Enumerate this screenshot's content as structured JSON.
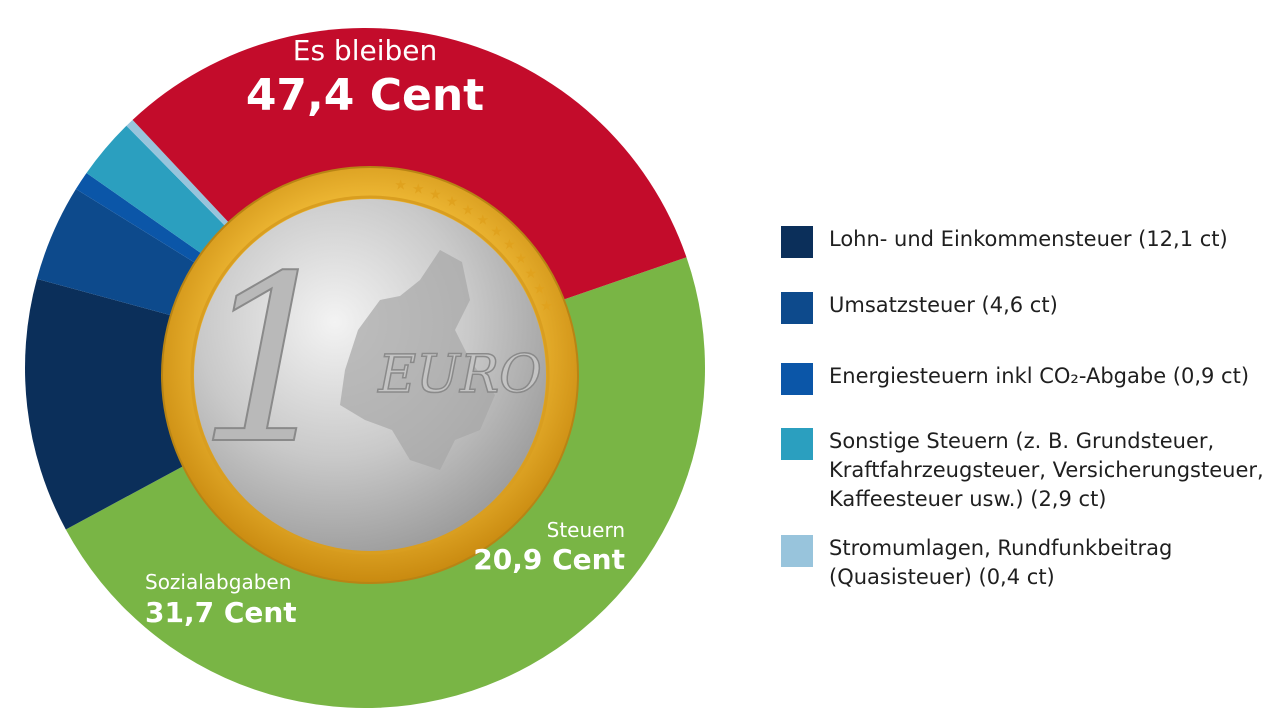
{
  "chart_data": {
    "type": "pie",
    "slices": [
      {
        "label": "Es bleiben",
        "value_label": "47,4 Cent",
        "value": 47.4,
        "color": "#79b545"
      },
      {
        "label": "Steuern",
        "value_label": "20,9 Cent",
        "value": 20.9,
        "color": "#0b3a6b",
        "parts": [
          {
            "name": "Lohn- und Einkommensteuer (12,1 ct)",
            "value": 12.1,
            "color": "#0b2f5a"
          },
          {
            "name": "Umsatzsteuer (4,6 ct)",
            "value": 4.6,
            "color": "#0d4a8c"
          },
          {
            "name": "Energiesteuern inkl CO₂-Abgabe (0,9 ct)",
            "value": 0.9,
            "color": "#0b56a8"
          },
          {
            "name": "Sonstige Steuern (z. B. Grundsteuer,\nKraftfahrzeugsteuer, Versicherungsteuer,\nKaffeesteuer usw.) (2,9 ct)",
            "value": 2.9,
            "color": "#2b9fbf"
          },
          {
            "name": "Stromumlagen, Rundfunkbeitrag\n(Quasisteuer) (0,4 ct)",
            "value": 0.4,
            "color": "#98c4dc"
          }
        ]
      },
      {
        "label": "Sozialabgaben",
        "value_label": "31,7 Cent",
        "value": 31.7,
        "color": "#c30c2b"
      }
    ],
    "center_image_text": {
      "numeral": "1",
      "word": "EURO"
    }
  }
}
